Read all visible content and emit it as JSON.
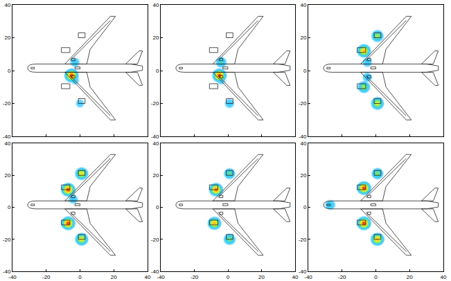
{
  "chart_data": [
    {
      "type": "contour",
      "xlim": [
        -40,
        40
      ],
      "ylim": [
        -40,
        40
      ],
      "xticks": [
        -40,
        -20,
        0,
        20,
        40
      ],
      "yticks": [
        -40,
        -20,
        0,
        20,
        40
      ],
      "tick_labels": "y",
      "zlim": [
        0,
        1
      ],
      "sources": [
        {
          "x": -5,
          "y": -3,
          "level": 0.95
        },
        {
          "x": -3,
          "y": 5,
          "level": 0.3
        },
        {
          "x": -3,
          "y": -6,
          "level": 0.25
        },
        {
          "x": 0,
          "y": -20,
          "level": 0.25
        }
      ]
    },
    {
      "type": "contour",
      "xlim": [
        -40,
        40
      ],
      "ylim": [
        -40,
        40
      ],
      "xticks": [
        -40,
        -20,
        0,
        20,
        40
      ],
      "yticks": [
        -40,
        -20,
        0,
        20,
        40
      ],
      "tick_labels": "y",
      "zlim": [
        0,
        1
      ],
      "sources": [
        {
          "x": -5,
          "y": -3,
          "level": 0.95
        },
        {
          "x": -4,
          "y": 5,
          "level": 0.4
        },
        {
          "x": -4,
          "y": -6,
          "level": 0.25
        },
        {
          "x": 1,
          "y": -20,
          "level": 0.3
        }
      ]
    },
    {
      "type": "contour",
      "xlim": [
        -40,
        40
      ],
      "ylim": [
        -40,
        40
      ],
      "xticks": [
        -40,
        -20,
        0,
        20,
        40
      ],
      "yticks": [
        -40,
        -20,
        0,
        20,
        40
      ],
      "tick_labels": "y",
      "zlim": [
        0,
        1
      ],
      "sources": [
        {
          "x": -7,
          "y": 12,
          "level": 0.8
        },
        {
          "x": 1,
          "y": 21,
          "level": 0.55
        },
        {
          "x": -7,
          "y": -10,
          "level": 0.55
        },
        {
          "x": 1,
          "y": -20,
          "level": 0.65
        },
        {
          "x": -5,
          "y": 5,
          "level": 0.3
        },
        {
          "x": -5,
          "y": -4,
          "level": 0.3
        }
      ]
    },
    {
      "type": "contour",
      "xlim": [
        -40,
        40
      ],
      "ylim": [
        -40,
        40
      ],
      "xticks": [
        -40,
        -20,
        0,
        20,
        40
      ],
      "yticks": [
        -40,
        -20,
        0,
        20,
        40
      ],
      "zlim": [
        0,
        1
      ],
      "sources": [
        {
          "x": -7,
          "y": 11,
          "level": 0.95
        },
        {
          "x": 1,
          "y": 21,
          "level": 0.7
        },
        {
          "x": -7,
          "y": -10,
          "level": 0.95
        },
        {
          "x": 1,
          "y": -20,
          "level": 0.7
        },
        {
          "x": -4,
          "y": 5,
          "level": 0.3
        }
      ]
    },
    {
      "type": "contour",
      "xlim": [
        -40,
        40
      ],
      "ylim": [
        -40,
        40
      ],
      "xticks": [
        -40,
        -20,
        0,
        20,
        40
      ],
      "yticks": [
        -40,
        -20,
        0,
        20,
        40
      ],
      "zlim": [
        0,
        1
      ],
      "sources": [
        {
          "x": -7,
          "y": 11,
          "level": 0.9
        },
        {
          "x": 1,
          "y": 21,
          "level": 0.45
        },
        {
          "x": -8,
          "y": -10,
          "level": 0.8
        },
        {
          "x": 1,
          "y": -20,
          "level": 0.5
        }
      ]
    },
    {
      "type": "contour",
      "xlim": [
        -40,
        40
      ],
      "ylim": [
        -40,
        40
      ],
      "xticks": [
        -40,
        -20,
        0,
        20,
        40
      ],
      "yticks": [
        -40,
        -20,
        0,
        20,
        40
      ],
      "zlim": [
        0,
        1
      ],
      "sources": [
        {
          "x": -7,
          "y": 12,
          "level": 0.95
        },
        {
          "x": 1,
          "y": 21,
          "level": 0.5
        },
        {
          "x": -7,
          "y": -10,
          "level": 0.95
        },
        {
          "x": 1,
          "y": -20,
          "level": 0.8
        },
        {
          "x": -27,
          "y": 1.5,
          "level": 0.35
        }
      ]
    }
  ]
}
